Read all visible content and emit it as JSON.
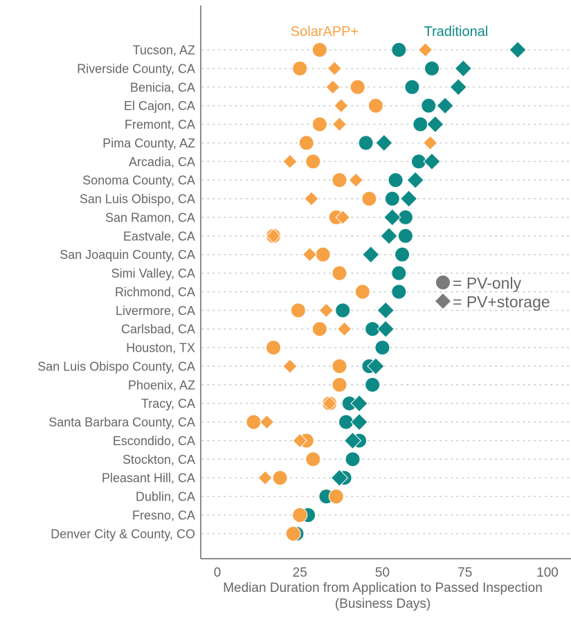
{
  "chart_data": {
    "type": "scatter",
    "title": "",
    "xlabel": "Median Duration from Application to Passed Inspection",
    "xlabel_line2": "(Business Days)",
    "ylabel": "",
    "xlim": [
      -5,
      105
    ],
    "xticks": [
      0,
      25,
      50,
      75,
      100
    ],
    "grid": "horizontal dotted",
    "colors": {
      "SolarAPP+": "#F7A145",
      "Traditional": "#0E8A86",
      "legend_shape": "#7a7a7a"
    },
    "group_labels": [
      "SolarAPP+",
      "Traditional"
    ],
    "shape_legend": {
      "circle": "= PV-only",
      "diamond": "= PV+storage",
      "placement": "right"
    },
    "categories": [
      "Tucson, AZ",
      "Riverside County, CA",
      "Benicia, CA",
      "El Cajon, CA",
      "Fremont, CA",
      "Pima County, AZ",
      "Arcadia, CA",
      "Sonoma County, CA",
      "San Luis Obispo, CA",
      "San Ramon, CA",
      "Eastvale, CA",
      "San Joaquin County, CA",
      "Simi Valley, CA",
      "Richmond, CA",
      "Livermore, CA",
      "Carlsbad, CA",
      "Houston, TX",
      "San Luis Obispo County, CA",
      "Phoenix, AZ",
      "Tracy, CA",
      "Santa Barbara County, CA",
      "Escondido, CA",
      "Stockton, CA",
      "Pleasant Hill, CA",
      "Dublin, CA",
      "Fresno, CA",
      "Denver City & County, CO"
    ],
    "series": [
      {
        "group": "Traditional",
        "shape": "circle",
        "values": [
          55,
          65,
          59,
          64,
          61.5,
          45,
          61,
          54,
          53,
          57,
          57,
          56,
          55,
          55,
          38,
          47,
          50,
          46,
          47,
          40,
          39,
          43,
          41,
          38.5,
          33,
          27.5,
          24
        ]
      },
      {
        "group": "SolarAPP+",
        "shape": "circle",
        "values": [
          31,
          25,
          42.5,
          48,
          31,
          27,
          29,
          37,
          46,
          36,
          17,
          32,
          37,
          44,
          24.5,
          31,
          17,
          37,
          37,
          34,
          11,
          27,
          29,
          19,
          36,
          25,
          23
        ]
      },
      {
        "group": "Traditional",
        "shape": "diamond",
        "values": [
          91,
          74.5,
          73,
          69,
          66,
          50.5,
          65,
          60,
          58,
          53,
          52,
          46.5,
          null,
          null,
          51,
          51,
          null,
          48,
          null,
          43,
          43,
          41,
          null,
          37,
          null,
          null,
          null
        ]
      },
      {
        "group": "SolarAPP+",
        "shape": "diamond",
        "values": [
          63,
          35.5,
          35,
          37.5,
          37,
          64.5,
          22,
          42,
          28.5,
          38,
          17,
          28,
          null,
          null,
          33,
          38.5,
          null,
          22,
          null,
          34,
          15,
          25,
          null,
          14.5,
          null,
          null,
          null
        ]
      }
    ]
  }
}
